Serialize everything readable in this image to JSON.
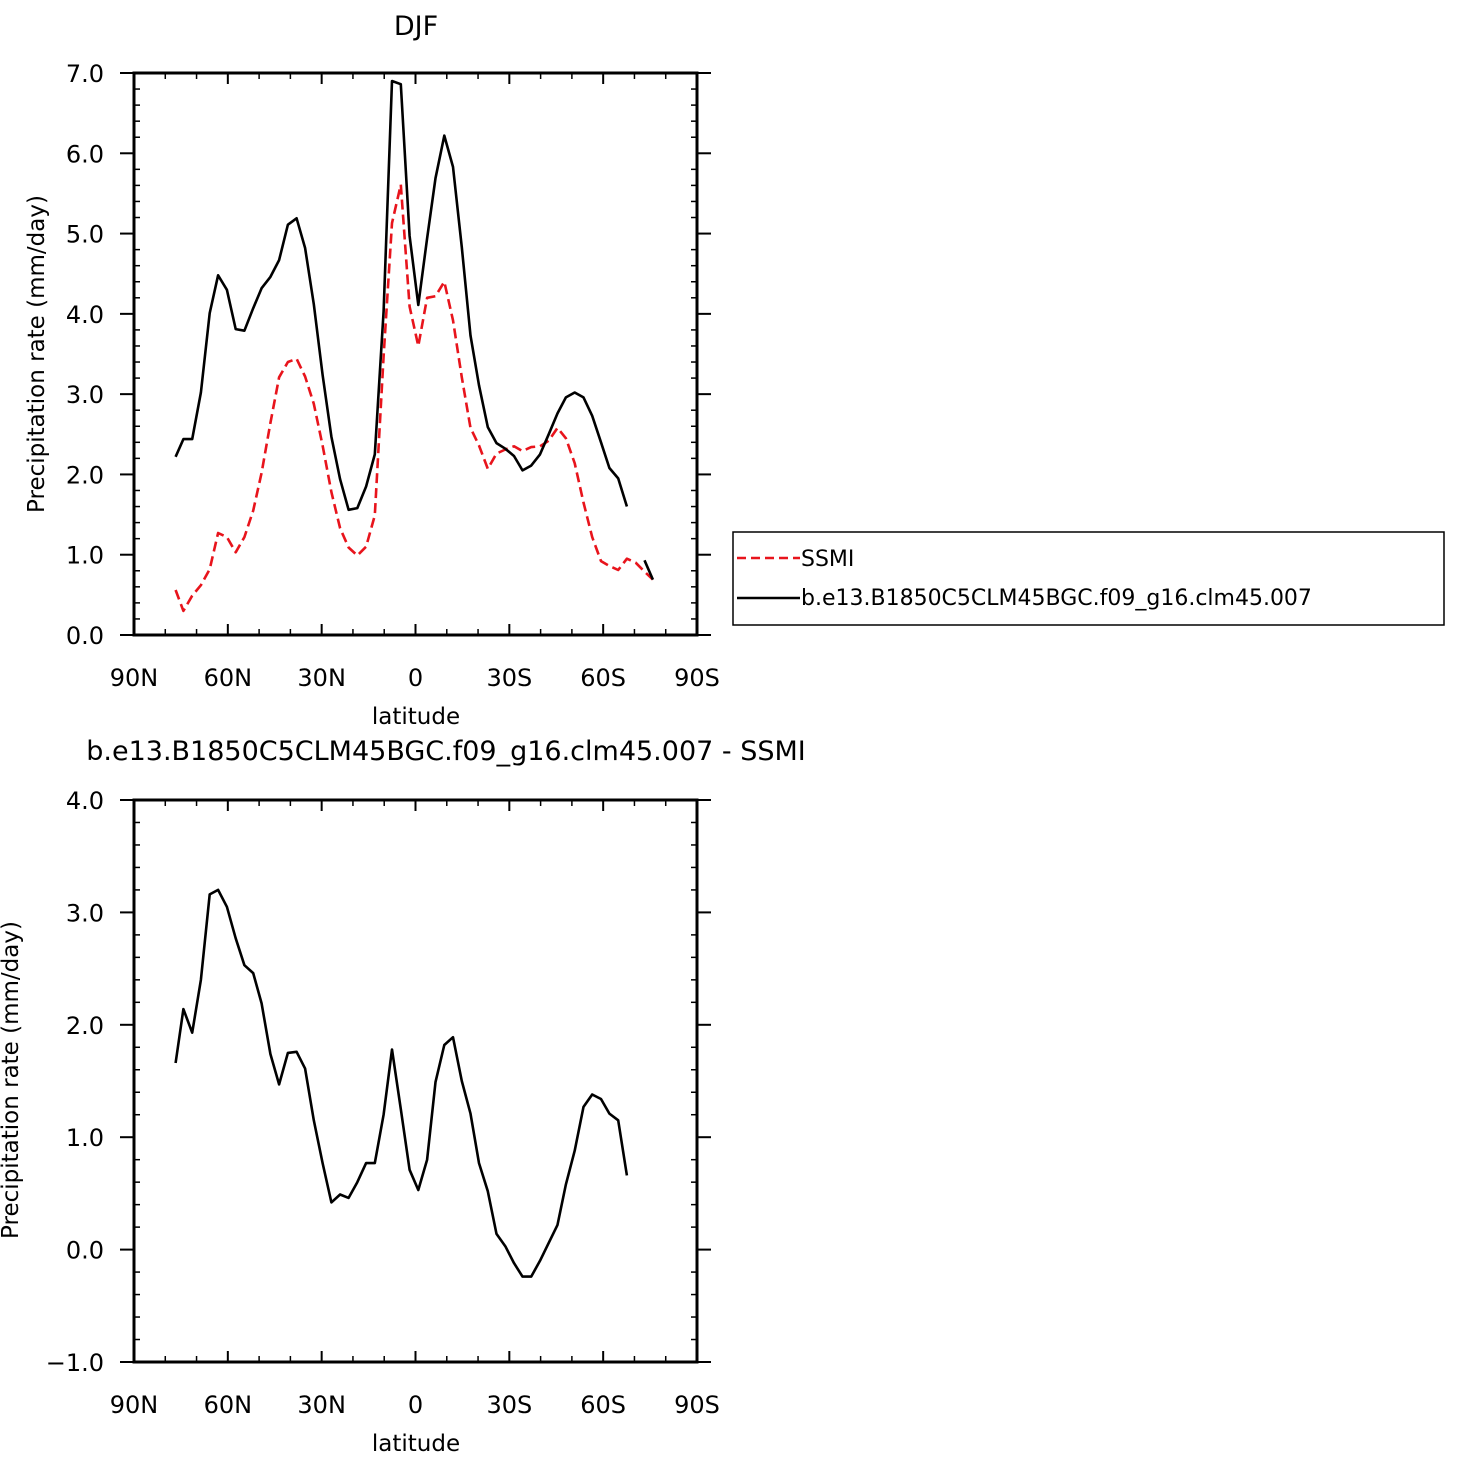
{
  "chart_data": [
    {
      "type": "line",
      "title": "DJF",
      "xlabel": "latitude",
      "ylabel": "Precipitation rate (mm/day)",
      "xlim": [
        90,
        -90
      ],
      "ylim": [
        0,
        7
      ],
      "xticks": [
        90,
        60,
        30,
        0,
        -30,
        -60,
        -90
      ],
      "xtick_labels": [
        "90N",
        "60N",
        "30N",
        "0",
        "30S",
        "60S",
        "90S"
      ],
      "yticks": [
        0,
        1,
        2,
        3,
        4,
        5,
        6,
        7
      ],
      "ytick_labels": [
        "0.0",
        "1.0",
        "2.0",
        "3.0",
        "4.0",
        "5.0",
        "6.0",
        "7.0"
      ],
      "legend_position": "right",
      "series": [
        {
          "name": "SSMI",
          "color": "#e8141c",
          "dash": "dashed",
          "x": [
            76.7,
            74.2,
            71.4,
            68.6,
            65.8,
            63.1,
            60.3,
            57.5,
            54.7,
            51.9,
            49.2,
            46.4,
            43.6,
            40.8,
            38.0,
            35.3,
            32.5,
            29.7,
            26.9,
            24.1,
            21.4,
            18.6,
            15.8,
            13.0,
            10.2,
            7.5,
            4.7,
            1.9,
            -0.9,
            -3.7,
            -6.4,
            -9.2,
            -12.0,
            -14.8,
            -17.6,
            -20.3,
            -23.1,
            -25.9,
            -28.7,
            -31.5,
            -34.2,
            -37.0,
            -39.8,
            -42.6,
            -45.4,
            -48.1,
            -50.9,
            -53.7,
            -56.5,
            -59.3,
            -62.0,
            -64.8,
            -67.6,
            -70.4,
            -73.2,
            -75.9
          ],
          "y": [
            0.56,
            0.3,
            0.49,
            0.62,
            0.82,
            1.27,
            1.22,
            1.03,
            1.22,
            1.55,
            2.02,
            2.64,
            3.21,
            3.4,
            3.44,
            3.22,
            2.88,
            2.36,
            1.78,
            1.33,
            1.09,
            0.99,
            1.1,
            1.49,
            3.47,
            5.13,
            5.61,
            4.09,
            3.6,
            4.2,
            4.22,
            4.4,
            3.92,
            3.21,
            2.58,
            2.36,
            2.07,
            2.26,
            2.31,
            2.35,
            2.29,
            2.34,
            2.35,
            2.42,
            2.58,
            2.45,
            2.14,
            1.65,
            1.22,
            0.92,
            0.86,
            0.81,
            0.95,
            0.9,
            0.79,
            0.69
          ]
        },
        {
          "name": "b.e13.B1850C5CLM45BGC.f09_g16.clm45.007",
          "color": "#000000",
          "dash": "solid",
          "x": [
            76.7,
            74.2,
            71.4,
            68.6,
            65.8,
            63.1,
            60.3,
            57.5,
            54.7,
            51.9,
            49.2,
            46.4,
            43.6,
            40.8,
            38.0,
            35.3,
            32.5,
            29.7,
            26.9,
            24.1,
            21.4,
            18.6,
            15.8,
            13.0,
            10.2,
            7.5,
            4.7,
            1.9,
            -0.9,
            -3.7,
            -6.4,
            -9.2,
            -12.0,
            -14.8,
            -17.6,
            -20.3,
            -23.1,
            -25.9,
            -28.7,
            -31.5,
            -34.2,
            -37.0,
            -39.8,
            -42.6,
            -45.4,
            -48.1,
            -50.9,
            -53.7,
            -56.5,
            -59.3,
            -62.0,
            -64.8,
            -67.6,
            -70.4,
            -73.2,
            -75.9
          ],
          "y": [
            2.22,
            2.44,
            2.44,
            3.02,
            4.01,
            4.48,
            4.3,
            3.81,
            3.79,
            4.07,
            4.32,
            4.46,
            4.67,
            5.11,
            5.19,
            4.82,
            4.12,
            3.24,
            2.47,
            1.94,
            1.56,
            1.58,
            1.85,
            2.25,
            4.03,
            6.9,
            6.86,
            4.97,
            4.11,
            4.94,
            5.69,
            6.22,
            5.83,
            4.83,
            3.73,
            3.11,
            2.59,
            2.39,
            2.32,
            2.23,
            2.05,
            2.11,
            2.25,
            2.5,
            2.76,
            2.96,
            3.02,
            2.96,
            2.73,
            2.4,
            2.08,
            1.95,
            1.6,
            null,
            0.93,
            0.69
          ]
        }
      ]
    },
    {
      "type": "line",
      "title": "b.e13.B1850C5CLM45BGC.f09_g16.clm45.007 - SSMI",
      "xlabel": "latitude",
      "ylabel": "Precipitation rate (mm/day)",
      "xlim": [
        90,
        -90
      ],
      "ylim": [
        -1,
        4
      ],
      "xticks": [
        90,
        60,
        30,
        0,
        -30,
        -60,
        -90
      ],
      "xtick_labels": [
        "90N",
        "60N",
        "30N",
        "0",
        "30S",
        "60S",
        "90S"
      ],
      "yticks": [
        -1,
        0,
        1,
        2,
        3,
        4
      ],
      "ytick_labels": [
        "−1.0",
        "0.0",
        "1.0",
        "2.0",
        "3.0",
        "4.0"
      ],
      "series": [
        {
          "color": "#000000",
          "dash": "solid",
          "x": [
            76.7,
            74.2,
            71.4,
            68.6,
            65.8,
            63.1,
            60.3,
            57.5,
            54.7,
            51.9,
            49.2,
            46.4,
            43.6,
            40.8,
            38.0,
            35.3,
            32.5,
            29.7,
            26.9,
            24.1,
            21.4,
            18.6,
            15.8,
            13.0,
            10.2,
            7.5,
            4.7,
            1.9,
            -0.9,
            -3.7,
            -6.4,
            -9.2,
            -12.0,
            -14.8,
            -17.6,
            -20.3,
            -23.1,
            -25.9,
            -28.7,
            -31.5,
            -34.2,
            -37.0,
            -39.8,
            -42.6,
            -45.4,
            -48.1,
            -50.9,
            -53.7,
            -56.5,
            -59.3,
            -62.0,
            -64.8,
            -67.6
          ],
          "y": [
            1.66,
            2.14,
            1.93,
            2.4,
            3.16,
            3.2,
            3.05,
            2.77,
            2.53,
            2.46,
            2.19,
            1.74,
            1.47,
            1.75,
            1.76,
            1.61,
            1.15,
            0.77,
            0.42,
            0.49,
            0.46,
            0.6,
            0.77,
            0.77,
            1.2,
            1.78,
            1.25,
            0.71,
            0.53,
            0.8,
            1.49,
            1.82,
            1.89,
            1.5,
            1.21,
            0.77,
            0.52,
            0.14,
            0.03,
            -0.12,
            -0.24,
            -0.24,
            -0.1,
            0.06,
            0.22,
            0.58,
            0.88,
            1.27,
            1.38,
            1.34,
            1.21,
            1.15,
            0.66
          ]
        }
      ]
    }
  ]
}
